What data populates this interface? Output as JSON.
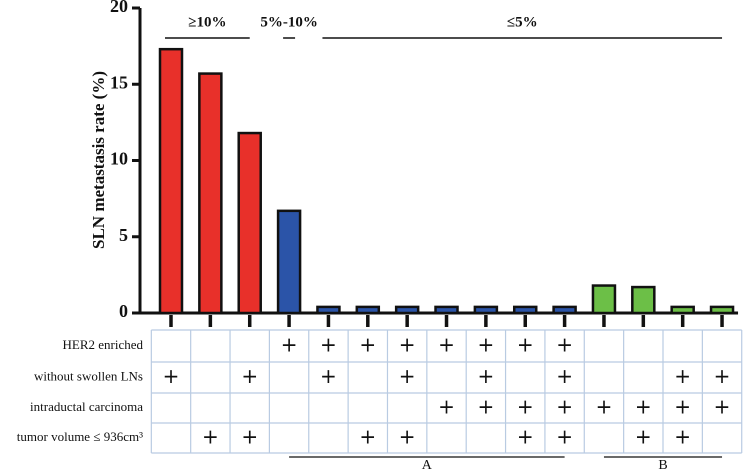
{
  "chart_data": {
    "type": "bar",
    "y_label": "SLN metastasis rate (%)",
    "categories": [
      null,
      null,
      null,
      null,
      null,
      null,
      null,
      null,
      null,
      null,
      null,
      null,
      null,
      null,
      null
    ],
    "values": [
      17.3,
      15.7,
      11.8,
      6.7,
      0.4,
      0.4,
      0.4,
      0.4,
      0.4,
      0.4,
      0.4,
      1.8,
      1.7,
      0.4,
      0.4
    ],
    "colors": [
      "#e8302a",
      "#e8302a",
      "#e8302a",
      "#2b54a8",
      "#2b54a8",
      "#2b54a8",
      "#2b54a8",
      "#2b54a8",
      "#2b54a8",
      "#2b54a8",
      "#2b54a8",
      "#6cbf47",
      "#6cbf47",
      "#6cbf47",
      "#6cbf47"
    ],
    "ylim": [
      0,
      20
    ],
    "yticks": [
      0,
      5,
      10,
      15,
      20
    ],
    "top_groups": [
      {
        "label": "≥10%",
        "from": 0,
        "to": 2
      },
      {
        "label": "5%-10%",
        "from": 3,
        "to": 3
      },
      {
        "label": "≤5%",
        "from": 4,
        "to": 14
      }
    ],
    "table": [
      {
        "label": "HER2 enriched",
        "cells": [
          null,
          null,
          null,
          "+",
          "+",
          "+",
          "+",
          "+",
          "+",
          "+",
          "+",
          null,
          null,
          null,
          null
        ]
      },
      {
        "label": "without swollen LNs",
        "cells": [
          "+",
          null,
          "+",
          null,
          "+",
          null,
          "+",
          null,
          "+",
          null,
          "+",
          null,
          null,
          "+",
          "+"
        ]
      },
      {
        "label": "intraductal carcinoma",
        "cells": [
          null,
          null,
          null,
          null,
          null,
          null,
          null,
          "+",
          "+",
          "+",
          "+",
          "+",
          "+",
          "+",
          "+"
        ]
      },
      {
        "label": "tumor volume ≤ 936cm³",
        "cells": [
          null,
          "+",
          "+",
          null,
          null,
          "+",
          "+",
          null,
          null,
          "+",
          "+",
          null,
          "+",
          "+",
          null
        ]
      }
    ],
    "bottom_groups": [
      {
        "label": "A",
        "from": 3,
        "to": 10
      },
      {
        "label": "B",
        "from": 11,
        "to": 14
      }
    ]
  }
}
